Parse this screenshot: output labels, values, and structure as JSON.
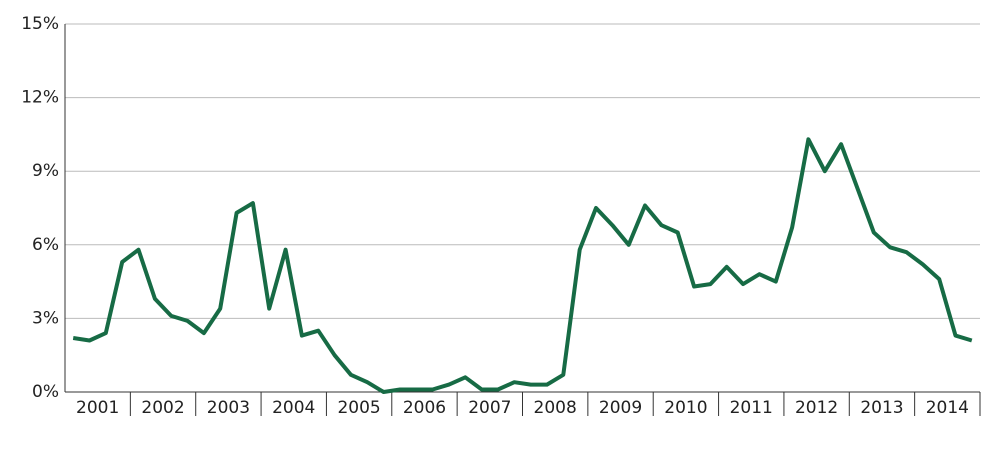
{
  "chart_data": {
    "type": "line",
    "categories": [
      "2001",
      null,
      null,
      null,
      "2002",
      null,
      null,
      null,
      "2003",
      null,
      null,
      null,
      "2004",
      null,
      null,
      null,
      "2005",
      null,
      null,
      null,
      "2006",
      null,
      null,
      null,
      "2007",
      null,
      null,
      null,
      "2008",
      null,
      null,
      null,
      "2009",
      null,
      null,
      null,
      "2010",
      null,
      null,
      null,
      "2011",
      null,
      null,
      null,
      "2012",
      null,
      null,
      null,
      "2013",
      null,
      null,
      null,
      "2014",
      null,
      null,
      null
    ],
    "series": [
      {
        "color": "#176b45",
        "values": [
          2.2,
          2.1,
          2.4,
          5.3,
          5.8,
          3.8,
          3.1,
          2.9,
          2.4,
          3.4,
          7.3,
          7.7,
          3.4,
          5.8,
          2.3,
          2.5,
          1.5,
          0.7,
          0.4,
          0.0,
          0.1,
          0.1,
          0.1,
          0.3,
          0.6,
          0.1,
          0.1,
          0.4,
          0.3,
          0.3,
          0.7,
          5.8,
          7.5,
          6.8,
          6.0,
          7.6,
          6.8,
          6.5,
          4.3,
          4.4,
          5.1,
          4.4,
          4.8,
          4.5,
          6.7,
          10.3,
          9.0,
          10.1,
          8.3,
          6.5,
          5.9,
          5.7,
          5.2,
          4.6,
          2.3,
          2.1
        ]
      }
    ],
    "ylim": [
      0,
      15
    ],
    "yticks": [
      {
        "value": 0,
        "label": "0%"
      },
      {
        "value": 3,
        "label": "3%"
      },
      {
        "value": 6,
        "label": "6%"
      },
      {
        "value": 9,
        "label": "9%"
      },
      {
        "value": 12,
        "label": "12%"
      },
      {
        "value": 15,
        "label": "15%"
      }
    ],
    "grid": true
  }
}
